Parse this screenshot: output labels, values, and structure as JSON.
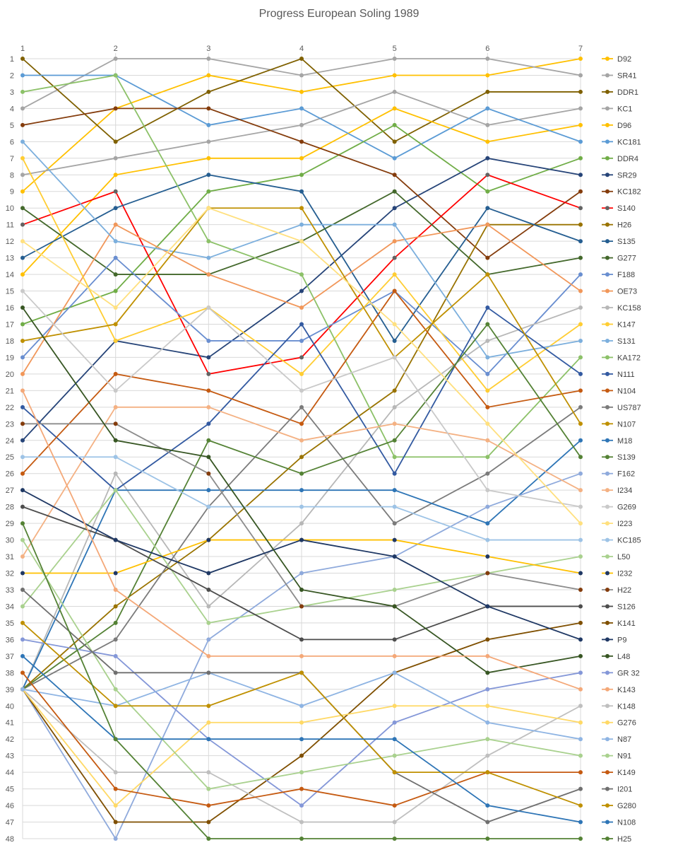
{
  "chart_data": {
    "type": "line",
    "title": "Progress European Soling 1989",
    "x": [
      1,
      2,
      3,
      4,
      5,
      6,
      7
    ],
    "ylim": [
      1,
      48
    ],
    "y_reversed": true,
    "x_axis_position": "top",
    "grid": true,
    "legend_placement": "right",
    "y_ticks": [
      1,
      2,
      3,
      4,
      5,
      6,
      7,
      8,
      9,
      10,
      11,
      12,
      13,
      14,
      15,
      16,
      17,
      18,
      19,
      20,
      21,
      22,
      23,
      24,
      25,
      26,
      27,
      28,
      29,
      30,
      31,
      32,
      33,
      34,
      35,
      36,
      37,
      38,
      39,
      40,
      41,
      42,
      43,
      44,
      45,
      46,
      47,
      48
    ],
    "series": [
      {
        "name": "D92",
        "color": "#FFC000",
        "values": [
          9,
          4,
          2,
          3,
          2,
          2,
          1
        ]
      },
      {
        "name": "SR41",
        "color": "#A5A5A5",
        "values": [
          4,
          1,
          1,
          2,
          1,
          1,
          2
        ]
      },
      {
        "name": "DDR1",
        "color": "#7F6000",
        "values": [
          1,
          6,
          3,
          1,
          6,
          3,
          3
        ]
      },
      {
        "name": "KC1",
        "color": "#A5A5A5",
        "values": [
          8,
          7,
          6,
          5,
          3,
          5,
          4
        ]
      },
      {
        "name": "D96",
        "color": "#FFC000",
        "values": [
          14,
          8,
          7,
          7,
          4,
          6,
          5
        ]
      },
      {
        "name": "KC181",
        "color": "#5B9BD5",
        "values": [
          2,
          2,
          5,
          4,
          7,
          4,
          6
        ]
      },
      {
        "name": "DDR4",
        "color": "#70AD47",
        "values": [
          17,
          15,
          9,
          8,
          5,
          9,
          7
        ]
      },
      {
        "name": "SR29",
        "color": "#264478",
        "values": [
          24,
          18,
          19,
          15,
          10,
          7,
          8
        ]
      },
      {
        "name": "KC182",
        "color": "#843C0C",
        "values": [
          5,
          4,
          4,
          6,
          8,
          13,
          9
        ]
      },
      {
        "name": "S140",
        "color": "#FF0000",
        "marker": "#636363",
        "values": [
          11,
          9,
          20,
          19,
          13,
          8,
          10
        ]
      },
      {
        "name": "H26",
        "color": "#997300",
        "values": [
          39,
          34,
          30,
          25,
          21,
          11,
          11
        ]
      },
      {
        "name": "S135",
        "color": "#255E91",
        "values": [
          13,
          10,
          8,
          9,
          18,
          10,
          12
        ]
      },
      {
        "name": "G277",
        "color": "#43682B",
        "values": [
          10,
          14,
          14,
          12,
          9,
          14,
          13
        ]
      },
      {
        "name": "F188",
        "color": "#698ED0",
        "values": [
          19,
          13,
          18,
          18,
          15,
          20,
          14
        ]
      },
      {
        "name": "OE73",
        "color": "#F1975A",
        "values": [
          20,
          11,
          14,
          16,
          12,
          11,
          15
        ]
      },
      {
        "name": "KC158",
        "color": "#B7B7B7",
        "values": [
          39,
          26,
          34,
          29,
          22,
          18,
          16
        ]
      },
      {
        "name": "K147",
        "color": "#FFCD33",
        "values": [
          7,
          18,
          16,
          20,
          14,
          21,
          17
        ]
      },
      {
        "name": "S131",
        "color": "#7CAFDD",
        "values": [
          6,
          12,
          13,
          11,
          11,
          19,
          18
        ]
      },
      {
        "name": "KA172",
        "color": "#8CC168",
        "values": [
          3,
          2,
          12,
          14,
          25,
          25,
          19
        ]
      },
      {
        "name": "N111",
        "color": "#335AA1",
        "values": [
          22,
          27,
          23,
          17,
          26,
          16,
          20
        ]
      },
      {
        "name": "N104",
        "color": "#C55A11",
        "values": [
          26,
          20,
          21,
          23,
          15,
          22,
          21
        ]
      },
      {
        "name": "US787",
        "color": "#7B7B7B",
        "values": [
          39,
          36,
          28,
          22,
          29,
          26,
          22
        ]
      },
      {
        "name": "N107",
        "color": "#BF9000",
        "values": [
          18,
          17,
          10,
          10,
          19,
          14,
          23
        ]
      },
      {
        "name": "M18",
        "color": "#2E75B6",
        "values": [
          39,
          27,
          27,
          27,
          27,
          29,
          24
        ]
      },
      {
        "name": "S139",
        "color": "#548235",
        "values": [
          39,
          35,
          24,
          26,
          24,
          17,
          25
        ]
      },
      {
        "name": "F162",
        "color": "#8FAADC",
        "values": [
          39,
          48,
          36,
          32,
          31,
          28,
          26
        ]
      },
      {
        "name": "I234",
        "color": "#F4B183",
        "values": [
          31,
          22,
          22,
          24,
          23,
          24,
          27
        ]
      },
      {
        "name": "G269",
        "color": "#C9C9C9",
        "values": [
          15,
          21,
          16,
          21,
          19,
          27,
          28
        ]
      },
      {
        "name": "I223",
        "color": "#FFE07F",
        "values": [
          12,
          16,
          10,
          12,
          17,
          23,
          29
        ]
      },
      {
        "name": "KC185",
        "color": "#9DC3E6",
        "values": [
          25,
          25,
          28,
          28,
          28,
          30,
          30
        ]
      },
      {
        "name": "L50",
        "color": "#A9D18E",
        "values": [
          34,
          27,
          35,
          34,
          33,
          32,
          31
        ]
      },
      {
        "name": "I232",
        "color": "#FFC000",
        "marker": "#203864",
        "values": [
          32,
          32,
          30,
          30,
          30,
          31,
          32
        ]
      },
      {
        "name": "H22",
        "color": "#8C8C8C",
        "marker": "#843C0C",
        "values": [
          23,
          23,
          26,
          34,
          34,
          32,
          33
        ]
      },
      {
        "name": "S126",
        "color": "#4D4D4D",
        "values": [
          28,
          30,
          33,
          36,
          36,
          34,
          34
        ]
      },
      {
        "name": "K141",
        "color": "#7F4F00",
        "values": [
          39,
          47,
          47,
          43,
          38,
          36,
          35
        ]
      },
      {
        "name": "P9",
        "color": "#1F3864",
        "values": [
          27,
          30,
          32,
          30,
          31,
          34,
          36
        ]
      },
      {
        "name": "L48",
        "color": "#375623",
        "values": [
          16,
          24,
          25,
          33,
          34,
          38,
          37
        ]
      },
      {
        "name": "GR 32",
        "color": "#8497D8",
        "values": [
          36,
          37,
          42,
          46,
          41,
          39,
          38
        ]
      },
      {
        "name": "K143",
        "color": "#F4A878",
        "values": [
          21,
          33,
          37,
          37,
          37,
          37,
          39
        ]
      },
      {
        "name": "K148",
        "color": "#BFBFBF",
        "values": [
          39,
          44,
          44,
          47,
          47,
          43,
          40
        ]
      },
      {
        "name": "G276",
        "color": "#FFD966",
        "values": [
          39,
          46,
          41,
          41,
          40,
          40,
          41
        ]
      },
      {
        "name": "N87",
        "color": "#8EB4E3",
        "values": [
          39,
          40,
          38,
          40,
          38,
          41,
          42
        ]
      },
      {
        "name": "N91",
        "color": "#A9D18E",
        "values": [
          30,
          39,
          45,
          44,
          43,
          42,
          43
        ]
      },
      {
        "name": "K149",
        "color": "#C55A11",
        "values": [
          38,
          45,
          46,
          45,
          46,
          44,
          44
        ]
      },
      {
        "name": "I201",
        "color": "#6F6F6F",
        "values": [
          33,
          38,
          38,
          38,
          44,
          47,
          45
        ]
      },
      {
        "name": "G280",
        "color": "#BF9000",
        "values": [
          35,
          40,
          40,
          38,
          44,
          44,
          46
        ]
      },
      {
        "name": "N108",
        "color": "#2E75B6",
        "values": [
          37,
          42,
          42,
          42,
          42,
          46,
          47
        ]
      },
      {
        "name": "H25",
        "color": "#548235",
        "values": [
          29,
          42,
          48,
          48,
          48,
          48,
          48
        ]
      }
    ]
  }
}
